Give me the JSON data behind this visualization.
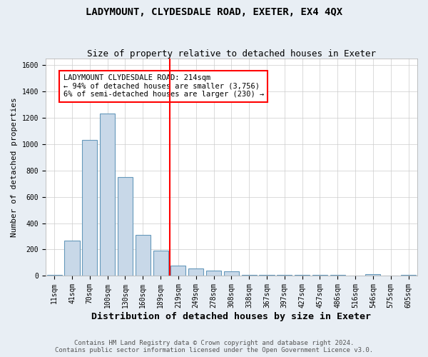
{
  "title": "LADYMOUNT, CLYDESDALE ROAD, EXETER, EX4 4QX",
  "subtitle": "Size of property relative to detached houses in Exeter",
  "xlabel": "Distribution of detached houses by size in Exeter",
  "ylabel": "Number of detached properties",
  "categories": [
    "11sqm",
    "41sqm",
    "70sqm",
    "100sqm",
    "130sqm",
    "160sqm",
    "189sqm",
    "219sqm",
    "249sqm",
    "278sqm",
    "308sqm",
    "338sqm",
    "367sqm",
    "397sqm",
    "427sqm",
    "457sqm",
    "486sqm",
    "516sqm",
    "546sqm",
    "575sqm",
    "605sqm"
  ],
  "values": [
    5,
    270,
    1030,
    1230,
    750,
    310,
    190,
    80,
    55,
    40,
    35,
    10,
    10,
    10,
    5,
    5,
    5,
    0,
    15,
    0,
    5
  ],
  "bar_color": "#c8d8e8",
  "bar_edge_color": "#6699bb",
  "redline_x": 6.5,
  "ylim": [
    0,
    1650
  ],
  "yticks": [
    0,
    200,
    400,
    600,
    800,
    1000,
    1200,
    1400,
    1600
  ],
  "annotation_title": "LADYMOUNT CLYDESDALE ROAD: 214sqm",
  "annotation_line1": "← 94% of detached houses are smaller (3,756)",
  "annotation_line2": "6% of semi-detached houses are larger (230) →",
  "footnote1": "Contains HM Land Registry data © Crown copyright and database right 2024.",
  "footnote2": "Contains public sector information licensed under the Open Government Licence v3.0.",
  "bg_color": "#e8eef4",
  "plot_bg_color": "#ffffff",
  "grid_color": "#cccccc",
  "title_fontsize": 10,
  "subtitle_fontsize": 9,
  "ylabel_fontsize": 8,
  "xlabel_fontsize": 9.5,
  "tick_fontsize": 7,
  "annotation_fontsize": 7.5,
  "footnote_fontsize": 6.5
}
